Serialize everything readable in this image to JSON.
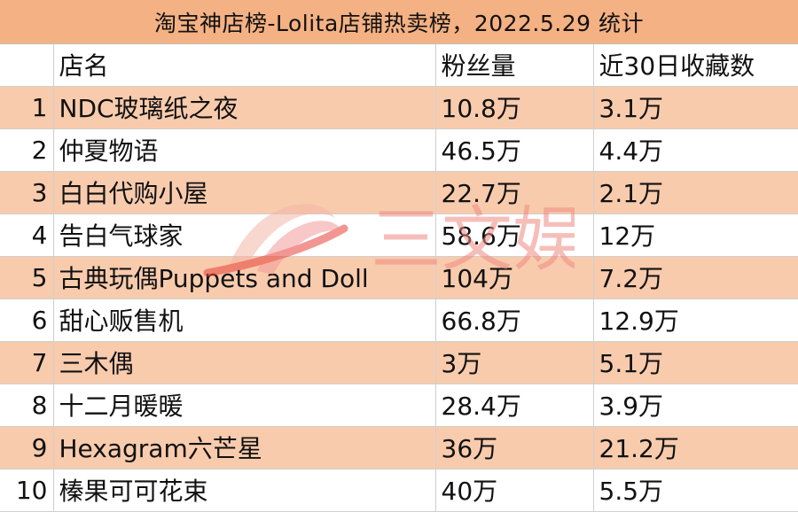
{
  "title": "淘宝神店榜-Lolita店铺热卖榜，2022.5.29 统计",
  "columns": [
    "",
    "店名",
    "粉丝量",
    "近30日收藏数"
  ],
  "rows": [
    {
      "rank": "1",
      "name": "NDC玻璃纸之夜",
      "fans": "10.8万",
      "fav": "3.1万"
    },
    {
      "rank": "2",
      "name": "仲夏物语",
      "fans": "46.5万",
      "fav": "4.4万"
    },
    {
      "rank": "3",
      "name": "白白代购小屋",
      "fans": "22.7万",
      "fav": "2.1万"
    },
    {
      "rank": "4",
      "name": "告白气球家",
      "fans": "58.6万",
      "fav": "12万"
    },
    {
      "rank": "5",
      "name": "古典玩偶Puppets and Doll",
      "fans": "104万",
      "fav": "7.2万"
    },
    {
      "rank": "6",
      "name": "甜心贩售机",
      "fans": "66.8万",
      "fav": "12.9万"
    },
    {
      "rank": "7",
      "name": "三木偶",
      "fans": "3万",
      "fav": "5.1万"
    },
    {
      "rank": "8",
      "name": "十二月暖暖",
      "fans": "28.4万",
      "fav": "3.9万"
    },
    {
      "rank": "9",
      "name": "Hexagram六芒星",
      "fans": "36万",
      "fav": "21.2万"
    },
    {
      "rank": "10",
      "name": "榛果可可花束",
      "fans": "40万",
      "fav": "5.5万"
    }
  ],
  "watermark": {
    "text": "三文娱",
    "icon": "saturn-logo-icon"
  },
  "colors": {
    "header_fill": "#f4b183",
    "stripe_fill": "#f8cbad",
    "watermark_red": "#e8423a",
    "watermark_pink": "#f49a9a"
  }
}
